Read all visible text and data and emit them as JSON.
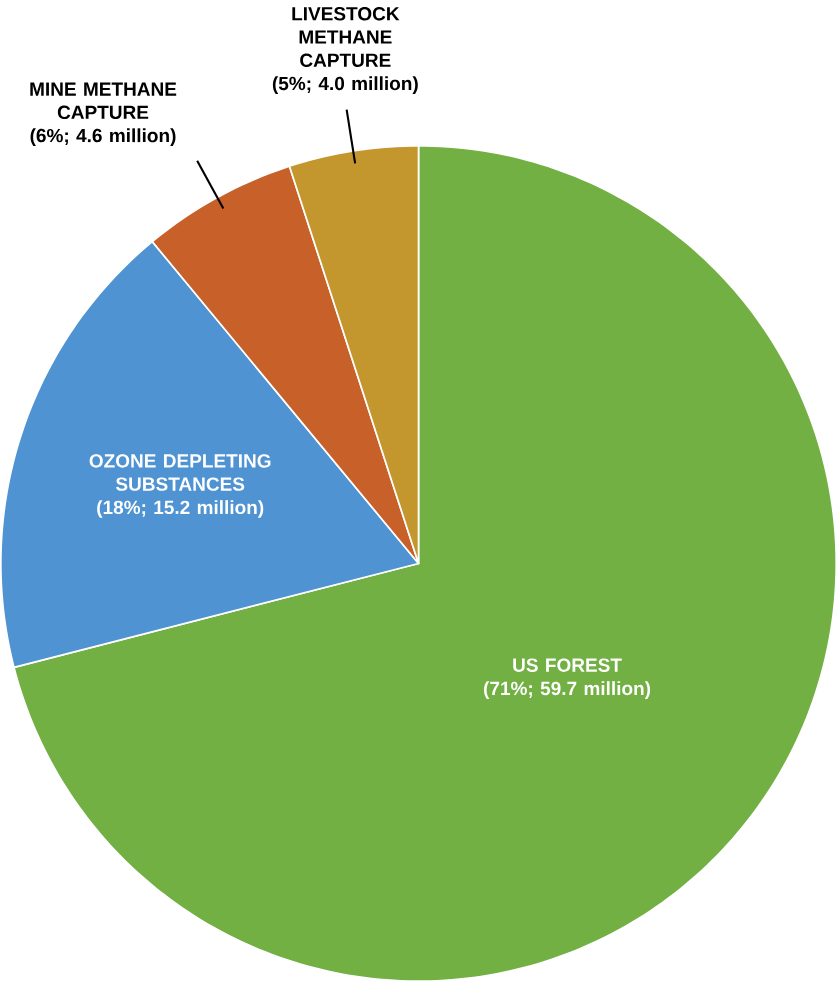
{
  "chart_data": {
    "type": "pie",
    "categories": [
      "US FOREST",
      "OZONE DEPLETING SUBSTANCES",
      "MINE METHANE CAPTURE",
      "LIVESTOCK METHANE CAPTURE"
    ],
    "values": [
      71,
      18,
      6,
      5
    ],
    "value_labels": [
      "(71%; 59.7 million)",
      "(18%; 15.2 million)",
      "(6%; 4.6 million)",
      "(5%; 4.0 million)"
    ],
    "colors": [
      "#72b043",
      "#4f93d2",
      "#c8602a",
      "#c4962e"
    ]
  }
}
